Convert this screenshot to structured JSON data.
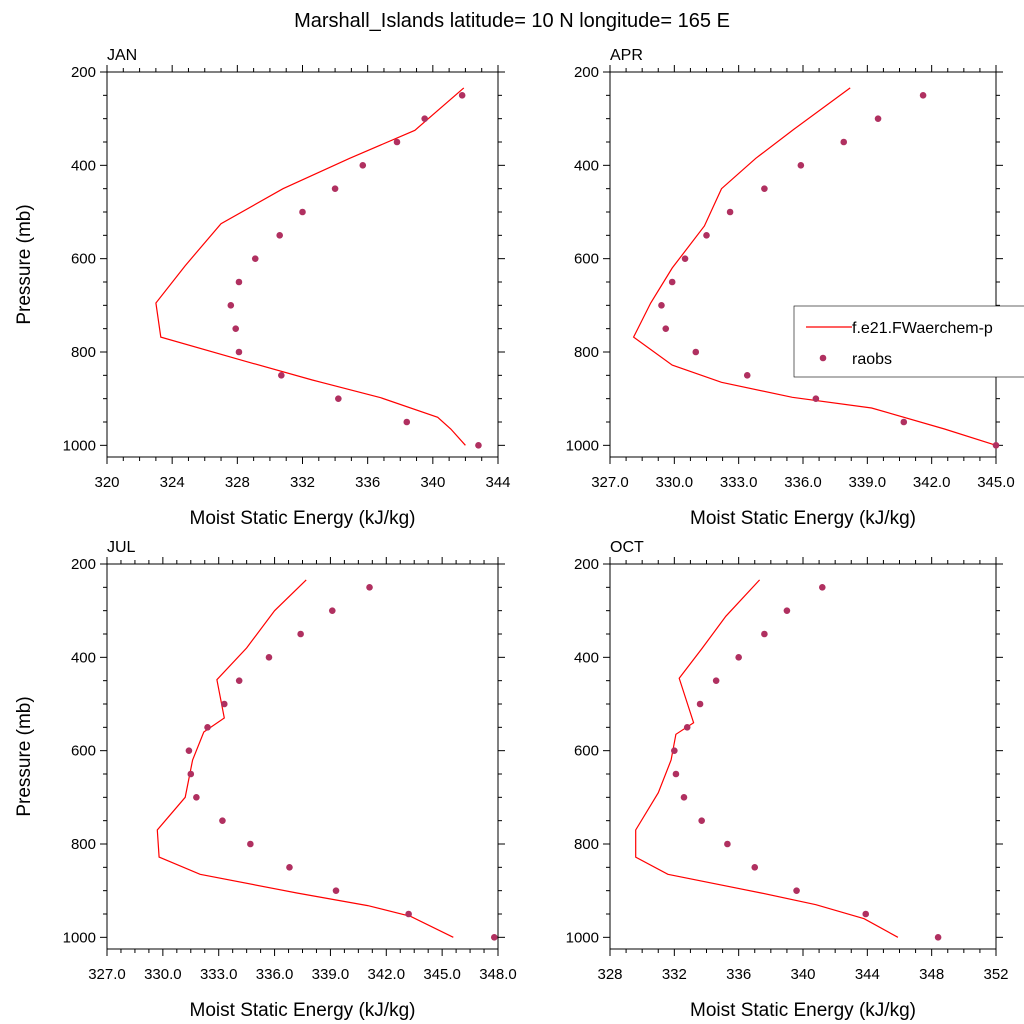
{
  "title": "Marshall_Islands  latitude= 10 N longitude= 165 E",
  "colors": {
    "model": "#ff0000",
    "obs": "#b03060"
  },
  "legend": {
    "model_label": "f.e21.FWaerchem-p",
    "obs_label": "raobs"
  },
  "chart_data": [
    {
      "type": "line",
      "panel": "JAN",
      "xlabel": "Moist Static Energy (kJ/kg)",
      "ylabel": "Pressure (mb)",
      "xlim": [
        320,
        344
      ],
      "ylim": [
        1025,
        200
      ],
      "xticks": [
        320,
        324,
        328,
        332,
        336,
        340,
        344
      ],
      "xtick_labels": [
        "320",
        "324",
        "328",
        "332",
        "336",
        "340",
        "344"
      ],
      "yticks": [
        200,
        400,
        600,
        800,
        1000
      ],
      "ytick_labels": [
        "200",
        "400",
        "600",
        "800",
        "1000"
      ],
      "series": [
        {
          "name": "f.e21.FWaerchem-p",
          "kind": "line",
          "points": [
            [
              341.9,
              234
            ],
            [
              338.9,
              325
            ],
            [
              334.9,
              385
            ],
            [
              330.8,
              450
            ],
            [
              327.0,
              525
            ],
            [
              324.8,
              615
            ],
            [
              323.0,
              695
            ],
            [
              323.3,
              768
            ],
            [
              328.5,
              820
            ],
            [
              332.6,
              860
            ],
            [
              336.8,
              898
            ],
            [
              340.3,
              940
            ],
            [
              341.1,
              965
            ],
            [
              342.0,
              1000
            ]
          ]
        },
        {
          "name": "raobs",
          "kind": "scatter",
          "points": [
            [
              341.8,
              250
            ],
            [
              339.5,
              300
            ],
            [
              337.8,
              350
            ],
            [
              335.7,
              400
            ],
            [
              334.0,
              450
            ],
            [
              332.0,
              500
            ],
            [
              330.6,
              550
            ],
            [
              329.1,
              600
            ],
            [
              328.1,
              650
            ],
            [
              327.6,
              700
            ],
            [
              327.9,
              750
            ],
            [
              328.1,
              800
            ],
            [
              330.7,
              850
            ],
            [
              334.2,
              900
            ],
            [
              338.4,
              950
            ],
            [
              342.8,
              1000
            ]
          ]
        }
      ]
    },
    {
      "type": "line",
      "panel": "APR",
      "xlabel": "Moist Static Energy (kJ/kg)",
      "ylabel": "",
      "xlim": [
        327,
        345
      ],
      "ylim": [
        1025,
        200
      ],
      "xticks": [
        327,
        330,
        333,
        336,
        339,
        342,
        345
      ],
      "xtick_labels": [
        "327.0",
        "330.0",
        "333.0",
        "336.0",
        "339.0",
        "342.0",
        "345.0"
      ],
      "yticks": [
        200,
        400,
        600,
        800,
        1000
      ],
      "ytick_labels": [
        "200",
        "400",
        "600",
        "800",
        "1000"
      ],
      "series": [
        {
          "name": "f.e21.FWaerchem-p",
          "kind": "line",
          "points": [
            [
              338.2,
              234
            ],
            [
              335.6,
              322
            ],
            [
              333.8,
              385
            ],
            [
              332.2,
              450
            ],
            [
              331.4,
              530
            ],
            [
              329.9,
              620
            ],
            [
              328.9,
              695
            ],
            [
              328.1,
              768
            ],
            [
              329.9,
              828
            ],
            [
              332.2,
              865
            ],
            [
              335.5,
              897
            ],
            [
              339.2,
              920
            ],
            [
              342.6,
              965
            ],
            [
              345.0,
              1000
            ]
          ]
        },
        {
          "name": "raobs",
          "kind": "scatter",
          "points": [
            [
              341.6,
              250
            ],
            [
              339.5,
              300
            ],
            [
              337.9,
              350
            ],
            [
              335.9,
              400
            ],
            [
              334.2,
              450
            ],
            [
              332.6,
              500
            ],
            [
              331.5,
              550
            ],
            [
              330.5,
              600
            ],
            [
              329.9,
              650
            ],
            [
              329.4,
              700
            ],
            [
              329.6,
              750
            ],
            [
              331.0,
              800
            ],
            [
              333.4,
              850
            ],
            [
              336.6,
              900
            ],
            [
              340.7,
              950
            ],
            [
              345.0,
              1000
            ]
          ]
        }
      ]
    },
    {
      "type": "line",
      "panel": "JUL",
      "xlabel": "Moist Static Energy (kJ/kg)",
      "ylabel": "Pressure (mb)",
      "xlim": [
        327,
        348
      ],
      "ylim": [
        1025,
        200
      ],
      "xticks": [
        327,
        330,
        333,
        336,
        339,
        342,
        345,
        348
      ],
      "xtick_labels": [
        "327.0",
        "330.0",
        "333.0",
        "336.0",
        "339.0",
        "342.0",
        "345.0",
        "348.0"
      ],
      "yticks": [
        200,
        400,
        600,
        800,
        1000
      ],
      "ytick_labels": [
        "200",
        "400",
        "600",
        "800",
        "1000"
      ],
      "series": [
        {
          "name": "f.e21.FWaerchem-p",
          "kind": "line",
          "points": [
            [
              337.7,
              234
            ],
            [
              336.0,
              300
            ],
            [
              334.5,
              380
            ],
            [
              332.9,
              448
            ],
            [
              333.3,
              530
            ],
            [
              332.2,
              560
            ],
            [
              331.6,
              620
            ],
            [
              331.2,
              700
            ],
            [
              329.7,
              770
            ],
            [
              329.8,
              828
            ],
            [
              332.0,
              865
            ],
            [
              337.2,
              905
            ],
            [
              341.0,
              932
            ],
            [
              343.3,
              955
            ],
            [
              345.6,
              1000
            ]
          ]
        },
        {
          "name": "raobs",
          "kind": "scatter",
          "points": [
            [
              341.1,
              250
            ],
            [
              339.1,
              300
            ],
            [
              337.4,
              350
            ],
            [
              335.7,
              400
            ],
            [
              334.1,
              450
            ],
            [
              333.3,
              500
            ],
            [
              332.4,
              550
            ],
            [
              331.4,
              600
            ],
            [
              331.5,
              650
            ],
            [
              331.8,
              700
            ],
            [
              333.2,
              750
            ],
            [
              334.7,
              800
            ],
            [
              336.8,
              850
            ],
            [
              339.3,
              900
            ],
            [
              343.2,
              950
            ],
            [
              347.8,
              1000
            ]
          ]
        }
      ]
    },
    {
      "type": "line",
      "panel": "OCT",
      "xlabel": "Moist Static Energy (kJ/kg)",
      "ylabel": "",
      "xlim": [
        328,
        352
      ],
      "ylim": [
        1025,
        200
      ],
      "xticks": [
        328,
        332,
        336,
        340,
        344,
        348,
        352
      ],
      "xtick_labels": [
        "328",
        "332",
        "336",
        "340",
        "344",
        "348",
        "352"
      ],
      "yticks": [
        200,
        400,
        600,
        800,
        1000
      ],
      "ytick_labels": [
        "200",
        "400",
        "600",
        "800",
        "1000"
      ],
      "series": [
        {
          "name": "f.e21.FWaerchem-p",
          "kind": "line",
          "points": [
            [
              337.3,
              234
            ],
            [
              335.2,
              312
            ],
            [
              333.7,
              382
            ],
            [
              332.3,
              445
            ],
            [
              333.2,
              540
            ],
            [
              332.1,
              565
            ],
            [
              331.8,
              620
            ],
            [
              331.0,
              690
            ],
            [
              329.6,
              770
            ],
            [
              329.6,
              828
            ],
            [
              331.6,
              865
            ],
            [
              337.4,
              905
            ],
            [
              340.8,
              930
            ],
            [
              343.8,
              960
            ],
            [
              345.9,
              1000
            ]
          ]
        },
        {
          "name": "raobs",
          "kind": "scatter",
          "points": [
            [
              341.2,
              250
            ],
            [
              339.0,
              300
            ],
            [
              337.6,
              350
            ],
            [
              336.0,
              400
            ],
            [
              334.6,
              450
            ],
            [
              333.6,
              500
            ],
            [
              332.8,
              550
            ],
            [
              332.0,
              600
            ],
            [
              332.1,
              650
            ],
            [
              332.6,
              700
            ],
            [
              333.7,
              750
            ],
            [
              335.3,
              800
            ],
            [
              337.0,
              850
            ],
            [
              339.6,
              900
            ],
            [
              343.9,
              950
            ],
            [
              348.4,
              1000
            ]
          ]
        }
      ]
    }
  ]
}
